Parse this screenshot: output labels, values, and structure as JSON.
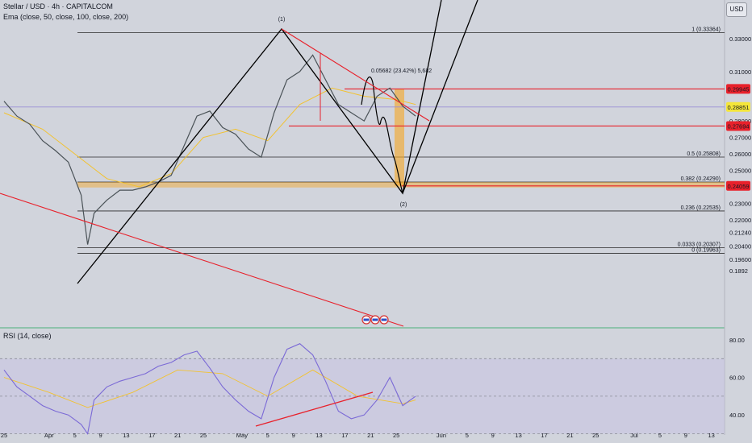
{
  "header": {
    "symbol_line": "Stellar / USD · 4h · CAPITALCOM",
    "ema_line": "Ema (close, 50, close, 100, close, 200)",
    "rsi_label": "RSI (14, close)",
    "currency_button": "USD"
  },
  "colors": {
    "background": "#d1d4dc",
    "price_up": "#4a5257",
    "ema": "#f2c230",
    "fib_line": "#2b2b2b",
    "drawing": "#000000",
    "red_line": "#e8212b",
    "highlight_zone": "#f5a623",
    "rsi_line": "#7b6ad6",
    "rsi_band": "#c9c2e3"
  },
  "chart_data": [
    {
      "type": "line",
      "title": "Stellar / USD · 4h · CAPITALCOM",
      "xlabel": "",
      "ylabel": "",
      "x_ticks": [
        "25",
        "Apr",
        "5",
        "9",
        "13",
        "17",
        "21",
        "25",
        "May",
        "5",
        "9",
        "13",
        "17",
        "21",
        "25",
        "Jun",
        "5",
        "9",
        "13",
        "17",
        "21",
        "25",
        "Jul",
        "5",
        "9",
        "13",
        "17",
        "21",
        "25"
      ],
      "y_ticks": [
        0.1892,
        0.196,
        0.204,
        0.2124,
        0.22,
        0.23,
        0.24,
        0.25,
        0.26,
        0.27,
        0.28,
        0.29,
        0.3,
        0.31,
        0.33
      ],
      "ylim": [
        0.185,
        0.338
      ],
      "grid": false,
      "fib_levels": [
        {
          "label": "1 (0.33364)",
          "value": 0.33364
        },
        {
          "label": "0.5 (0.25808)",
          "value": 0.25808
        },
        {
          "label": "0.382 (0.24290)",
          "value": 0.2429
        },
        {
          "label": "0.236 (0.22535)",
          "value": 0.22535
        },
        {
          "label": "0.0333 (0.20307)",
          "value": 0.20307
        },
        {
          "label": "0 (0.19963)",
          "value": 0.19963
        }
      ],
      "price_tags": [
        {
          "text": "0.29945",
          "value": 0.29945,
          "style": "red"
        },
        {
          "text": "0.28851",
          "value": 0.28851,
          "style": "yellow"
        },
        {
          "text": "0.27694",
          "value": 0.27694,
          "style": "red"
        },
        {
          "text": "0.24059",
          "value": 0.24059,
          "style": "red"
        }
      ],
      "annotations": [
        "(1)",
        "(2)",
        "0.05682 (23.42%) 5,682"
      ],
      "series": [
        {
          "x": [
            "Mar 25",
            "Mar 27",
            "Mar 29",
            "Mar 31",
            "Apr 2",
            "Apr 4",
            "Apr 6",
            "Apr 7",
            "Apr 8",
            "Apr 10",
            "Apr 12",
            "Apr 14",
            "Apr 16",
            "Apr 18",
            "Apr 20",
            "Apr 22",
            "Apr 24",
            "Apr 26",
            "Apr 28",
            "Apr 30",
            "May 2",
            "May 4",
            "May 6",
            "May 8",
            "May 10",
            "May 12",
            "May 14",
            "May 16",
            "May 18",
            "May 20",
            "May 22",
            "May 24",
            "May 26",
            "May 28"
          ],
          "values": [
            0.292,
            0.283,
            0.278,
            0.268,
            0.262,
            0.255,
            0.235,
            0.205,
            0.224,
            0.232,
            0.238,
            0.238,
            0.24,
            0.243,
            0.247,
            0.265,
            0.283,
            0.286,
            0.276,
            0.272,
            0.263,
            0.258,
            0.285,
            0.305,
            0.31,
            0.32,
            0.305,
            0.29,
            0.285,
            0.28,
            0.295,
            0.3,
            0.289,
            0.283
          ]
        },
        {
          "x": [
            "Mar 25",
            "Mar 31",
            "Apr 5",
            "Apr 10",
            "Apr 15",
            "Apr 20",
            "Apr 25",
            "Apr 30",
            "May 5",
            "May 10",
            "May 15",
            "May 20",
            "May 25",
            "May 28"
          ],
          "values": [
            0.285,
            0.275,
            0.26,
            0.245,
            0.24,
            0.248,
            0.27,
            0.275,
            0.268,
            0.29,
            0.3,
            0.295,
            0.293,
            0.29
          ]
        }
      ]
    },
    {
      "type": "line",
      "title": "RSI (14, close)",
      "ylim": [
        25,
        85
      ],
      "y_ticks": [
        40.0,
        60.0,
        80.0
      ],
      "bands": [
        30,
        50,
        70
      ],
      "series": [
        {
          "x": [
            "Mar 25",
            "Mar 27",
            "Mar 29",
            "Mar 31",
            "Apr 2",
            "Apr 4",
            "Apr 6",
            "Apr 7",
            "Apr 8",
            "Apr 10",
            "Apr 12",
            "Apr 14",
            "Apr 16",
            "Apr 18",
            "Apr 20",
            "Apr 22",
            "Apr 24",
            "Apr 26",
            "Apr 28",
            "Apr 30",
            "May 2",
            "May 4",
            "May 6",
            "May 8",
            "May 10",
            "May 12",
            "May 14",
            "May 16",
            "May 18",
            "May 20",
            "May 22",
            "May 24",
            "May 26",
            "May 28"
          ],
          "values": [
            64,
            55,
            50,
            45,
            42,
            40,
            35,
            30,
            48,
            55,
            58,
            60,
            62,
            66,
            68,
            72,
            74,
            65,
            55,
            48,
            42,
            38,
            60,
            75,
            78,
            72,
            58,
            42,
            38,
            40,
            48,
            60,
            45,
            50
          ]
        },
        {
          "x": [
            "Mar 25",
            "Apr 1",
            "Apr 7",
            "Apr 14",
            "Apr 21",
            "Apr 28",
            "May 5",
            "May 12",
            "May 19",
            "May 26",
            "May 28"
          ],
          "values": [
            60,
            52,
            44,
            52,
            64,
            62,
            50,
            64,
            50,
            46,
            48
          ]
        }
      ]
    }
  ]
}
